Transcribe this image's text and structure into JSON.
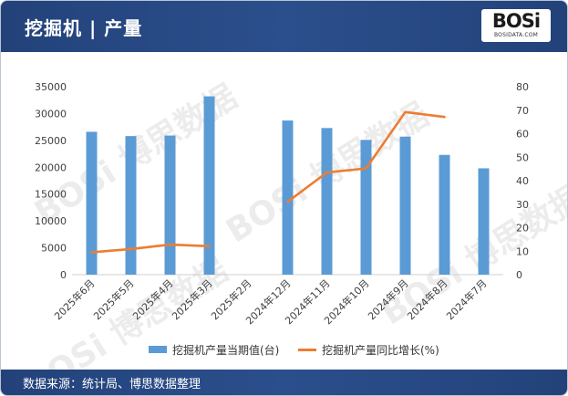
{
  "header": {
    "title": "挖掘机 | 产量",
    "logo_text": "BOSi",
    "logo_subtext": "BOSIDATA.COM"
  },
  "footer": {
    "source": "数据来源：统计局、博思数据整理"
  },
  "colors": {
    "header_bg": "#2b4f8c",
    "bar": "#5b9bd5",
    "line": "#ed7d31"
  },
  "chart_data": {
    "type": "bar",
    "title": "",
    "categories": [
      "2025年6月",
      "2025年5月",
      "2025年4月",
      "2025年3月",
      "2025年2月",
      "2024年12月",
      "2024年11月",
      "2024年10月",
      "2024年9月",
      "2024年8月",
      "2024年7月"
    ],
    "y_ticks_left": [
      "0",
      "5000",
      "10000",
      "15000",
      "20000",
      "25000",
      "30000",
      "35000"
    ],
    "y_ticks_right": [
      "0",
      "10",
      "20",
      "30",
      "40",
      "50",
      "60",
      "70",
      "80"
    ],
    "ylim_left": [
      0,
      35000
    ],
    "ylim_right": [
      0,
      80
    ],
    "series": [
      {
        "name": "挖掘机产量当期值(台)",
        "type": "bar",
        "axis": "left",
        "values": [
          26600,
          25800,
          25900,
          33200,
          null,
          28700,
          27300,
          25100,
          25700,
          22300,
          19800
        ]
      },
      {
        "name": "挖掘机产量同比增长(%)",
        "type": "line",
        "axis": "right",
        "values": [
          9.5,
          10.9,
          12.8,
          12.1,
          null,
          31,
          43.5,
          45.2,
          69.2,
          67.1,
          null
        ]
      }
    ],
    "legend_position": "bottom",
    "grid": false
  }
}
